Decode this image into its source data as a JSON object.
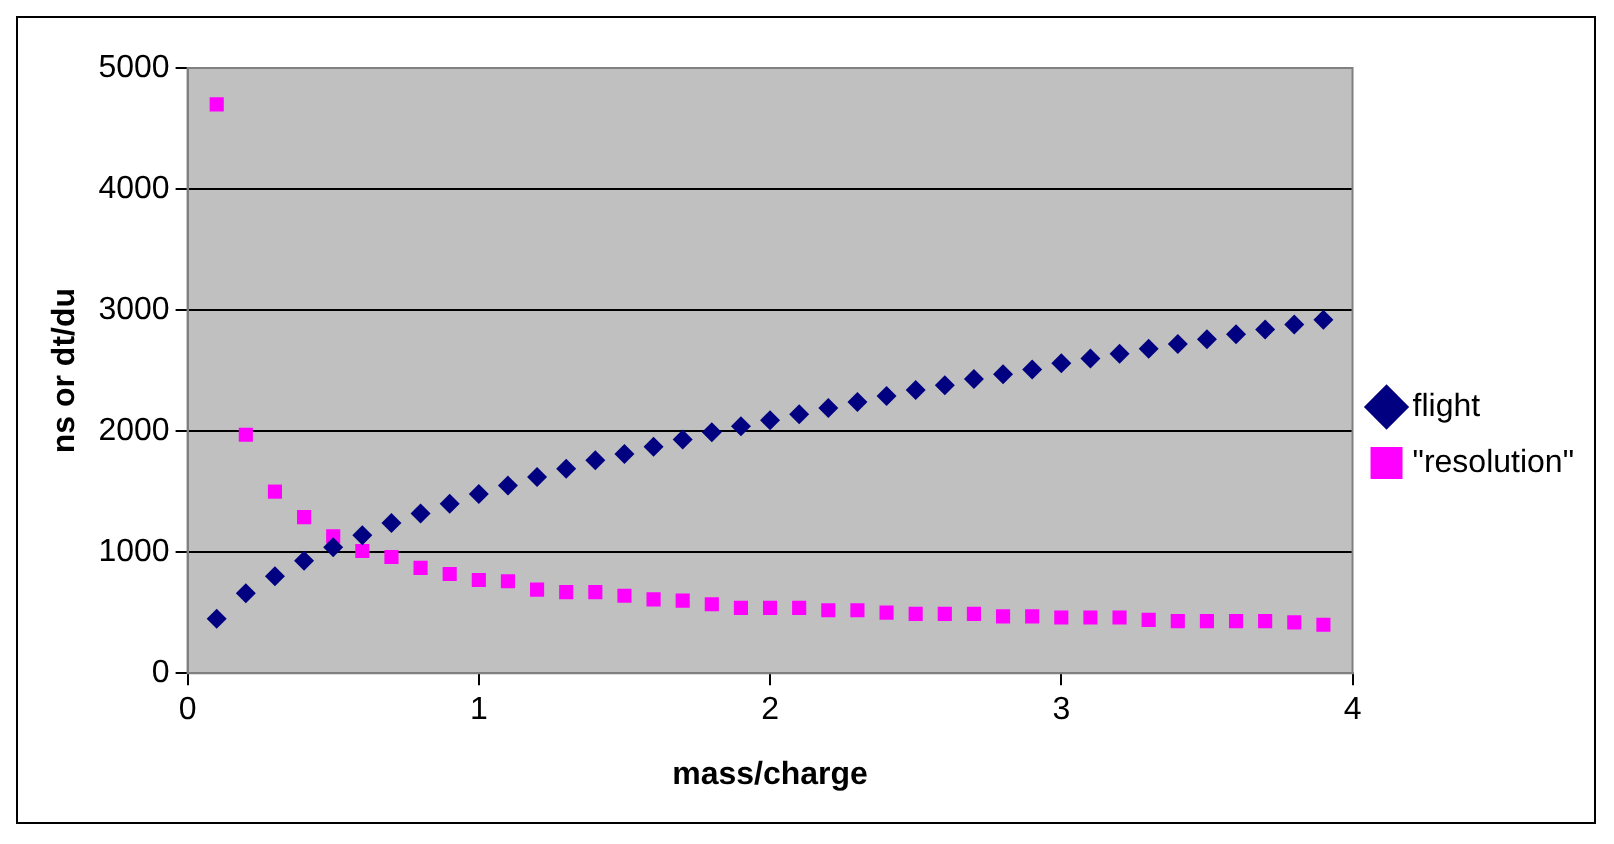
{
  "chart_data": {
    "type": "scatter",
    "xlabel": "mass/charge",
    "ylabel": "ns or dt/du",
    "xlim": [
      0,
      4
    ],
    "xticks": [
      0,
      1,
      2,
      3,
      4
    ],
    "ylim": [
      0,
      5000
    ],
    "yticks": [
      0,
      1000,
      2000,
      3000,
      4000,
      5000
    ],
    "grid": "y",
    "legend": "right",
    "x": [
      0.1,
      0.2,
      0.3,
      0.4,
      0.5,
      0.6,
      0.7,
      0.8,
      0.9,
      1.0,
      1.1,
      1.2,
      1.3,
      1.4,
      1.5,
      1.6,
      1.7,
      1.8,
      1.9,
      2.0,
      2.1,
      2.2,
      2.3,
      2.4,
      2.5,
      2.6,
      2.7,
      2.8,
      2.9,
      3.0,
      3.1,
      3.2,
      3.3,
      3.4,
      3.5,
      3.6,
      3.7,
      3.8,
      3.9
    ],
    "series": [
      {
        "name": "flight",
        "color": "#000080",
        "marker": "diamond",
        "values": [
          450,
          660,
          800,
          930,
          1040,
          1140,
          1240,
          1320,
          1400,
          1480,
          1550,
          1620,
          1690,
          1760,
          1810,
          1870,
          1930,
          1990,
          2040,
          2090,
          2140,
          2190,
          2240,
          2290,
          2340,
          2380,
          2430,
          2470,
          2510,
          2560,
          2600,
          2640,
          2680,
          2720,
          2760,
          2800,
          2840,
          2880,
          2920
        ]
      },
      {
        "name": "\"resolution\"",
        "color": "#ff00ff",
        "marker": "square",
        "values": [
          4700,
          1970,
          1500,
          1290,
          1130,
          1010,
          960,
          870,
          820,
          770,
          760,
          690,
          670,
          670,
          640,
          610,
          600,
          570,
          540,
          540,
          540,
          520,
          520,
          500,
          490,
          490,
          490,
          470,
          470,
          460,
          460,
          460,
          440,
          430,
          430,
          430,
          430,
          420,
          400
        ]
      }
    ]
  }
}
